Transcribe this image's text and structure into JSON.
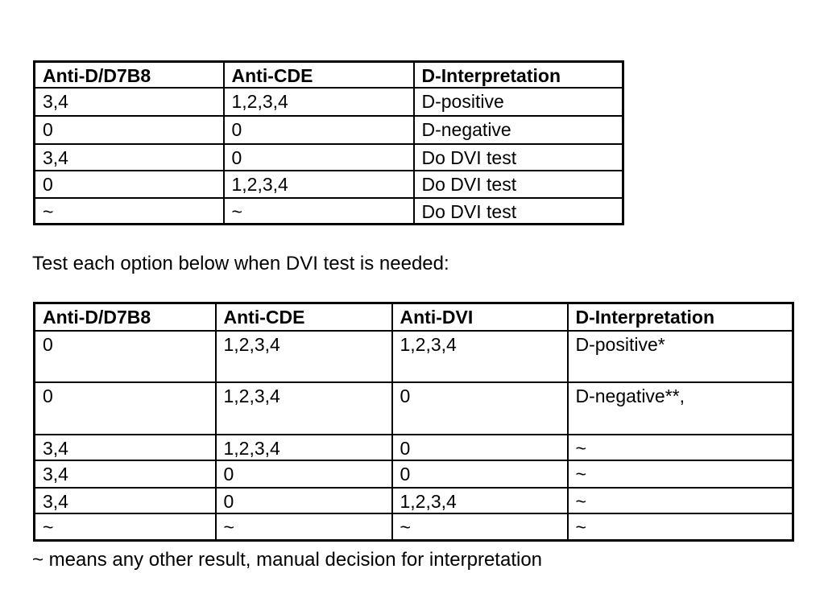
{
  "page": {
    "background_color": "#ffffff",
    "text_color": "#000000",
    "border_color": "#000000"
  },
  "table1": {
    "headers": [
      "Anti-D/D7B8",
      "Anti-CDE",
      "D-Interpretation"
    ],
    "rows": [
      [
        "3,4",
        "1,2,3,4",
        "D-positive"
      ],
      [
        "0",
        "0",
        "D-negative"
      ],
      [
        "3,4",
        "0",
        "Do DVI test"
      ],
      [
        "0",
        "1,2,3,4",
        "Do DVI test"
      ],
      [
        "~",
        "~",
        "Do DVI test"
      ]
    ]
  },
  "instruction": "Test each option below when DVI test is needed:",
  "table2": {
    "headers": [
      "Anti-D/D7B8",
      "Anti-CDE",
      "Anti-DVI",
      "D-Interpretation"
    ],
    "rows": [
      [
        "0",
        "1,2,3,4",
        "1,2,3,4",
        "D-positive*"
      ],
      [
        "0",
        "1,2,3,4",
        "0",
        "D-negative**,"
      ],
      [
        "3,4",
        "1,2,3,4",
        "0",
        "~"
      ],
      [
        "3,4",
        "0",
        "0",
        "~"
      ],
      [
        "3,4",
        "0",
        "1,2,3,4",
        "~"
      ],
      [
        "~",
        "~",
        "~",
        "~"
      ]
    ]
  },
  "footnote": "~ means any other result, manual decision for interpretation"
}
